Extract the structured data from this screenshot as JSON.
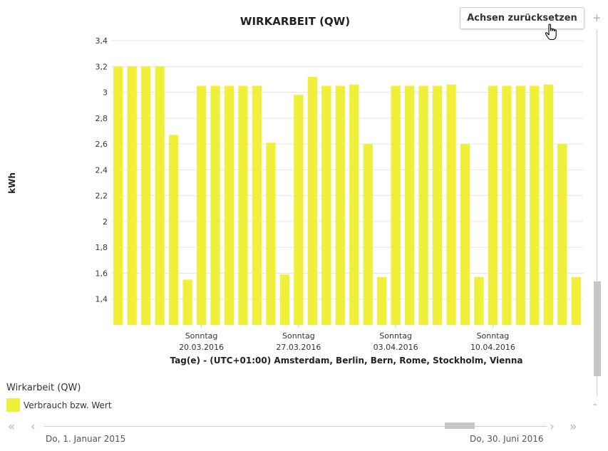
{
  "chart_data": {
    "type": "bar",
    "title": "WIRKARBEIT (QW)",
    "ylabel": "kWh",
    "xlabel": "Tag(e) - (UTC+01:00) Amsterdam, Berlin, Bern, Rome, Stockholm, Vienna",
    "ylim": [
      1.2,
      3.4
    ],
    "yticks": [
      "3,4",
      "3,2",
      "3",
      "2,8",
      "2,6",
      "2,4",
      "2,2",
      "2",
      "1,8",
      "1,6",
      "1,4"
    ],
    "ytick_values": [
      3.4,
      3.2,
      3.0,
      2.8,
      2.6,
      2.4,
      2.2,
      2.0,
      1.8,
      1.6,
      1.4
    ],
    "grid": true,
    "bar_color": "#f0ef3a",
    "values": [
      3.2,
      3.2,
      3.2,
      3.2,
      2.67,
      1.55,
      3.05,
      3.05,
      3.05,
      3.05,
      3.05,
      2.61,
      1.59,
      2.98,
      3.12,
      3.05,
      3.05,
      3.06,
      2.6,
      1.57,
      3.05,
      3.05,
      3.05,
      3.05,
      3.06,
      2.6,
      1.57,
      3.05,
      3.05,
      3.05,
      3.05,
      3.06,
      2.6,
      1.57
    ],
    "xtick_labels": [
      {
        "index": 6,
        "line1": "Sonntag",
        "line2": "20.03.2016"
      },
      {
        "index": 13,
        "line1": "Sonntag",
        "line2": "27.03.2016"
      },
      {
        "index": 20,
        "line1": "Sonntag",
        "line2": "03.04.2016"
      },
      {
        "index": 27,
        "line1": "Sonntag",
        "line2": "10.04.2016"
      }
    ],
    "legend": {
      "title": "Wirkarbeit (QW)",
      "series_name": "Verbrauch bzw. Wert"
    }
  },
  "toolbar": {
    "reset_label": "Achsen zurücksetzen"
  },
  "navigator": {
    "start_date": "Do, 1. Januar 2015",
    "end_date": "Do, 30. Juni 2016"
  },
  "icons": {
    "cursor": "hand-pointer-icon",
    "first": "double-chevron-left-icon",
    "prev": "chevron-left-icon",
    "next": "chevron-right-icon",
    "last": "double-chevron-right-icon",
    "zoom_in": "plus-icon",
    "zoom_out": "minus-icon"
  }
}
